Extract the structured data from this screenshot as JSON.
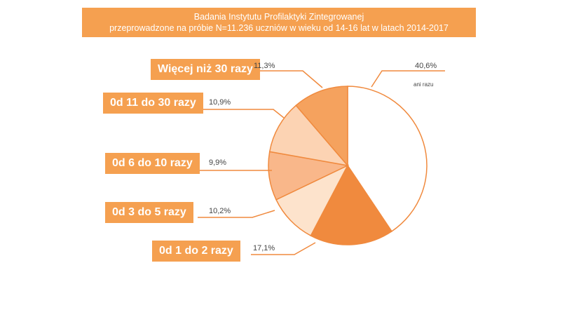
{
  "title": {
    "line1": "Badania Instytutu Profilaktyki Zintegrowanej",
    "line2": "przeprowadzone na próbie N=11.236 uczniów w wieku od 14-16 lat w latach 2014-2017"
  },
  "chart_data": {
    "type": "pie",
    "title": "Badania Instytutu Profilaktyki Zintegrowanej przeprowadzone na próbie N=11.236 uczniów w wieku od 14-16 lat w latach 2014-2017",
    "slices": [
      {
        "label": "ani razu",
        "value": 40.6,
        "value_label": "40,6%",
        "color": "#ffffff"
      },
      {
        "label": "0d 1 do 2 razy",
        "value": 17.1,
        "value_label": "17,1%",
        "color": "#f08a3e"
      },
      {
        "label": "0d 3 do 5 razy",
        "value": 10.2,
        "value_label": "10,2%",
        "color": "#fde3cc"
      },
      {
        "label": "0d 6 do 10 razy",
        "value": 9.9,
        "value_label": "9,9%",
        "color": "#f9b78a"
      },
      {
        "label": "0d 11 do 30 razy",
        "value": 10.9,
        "value_label": "10,9%",
        "color": "#fcd3b3"
      },
      {
        "label": "Więcej niż 30 razy",
        "value": 11.3,
        "value_label": "11,3%",
        "color": "#f5a25e"
      }
    ],
    "start_angle_deg": 0,
    "direction": "clockwise"
  },
  "colors": {
    "accent": "#f5a050",
    "stroke": "#f08a3e"
  }
}
